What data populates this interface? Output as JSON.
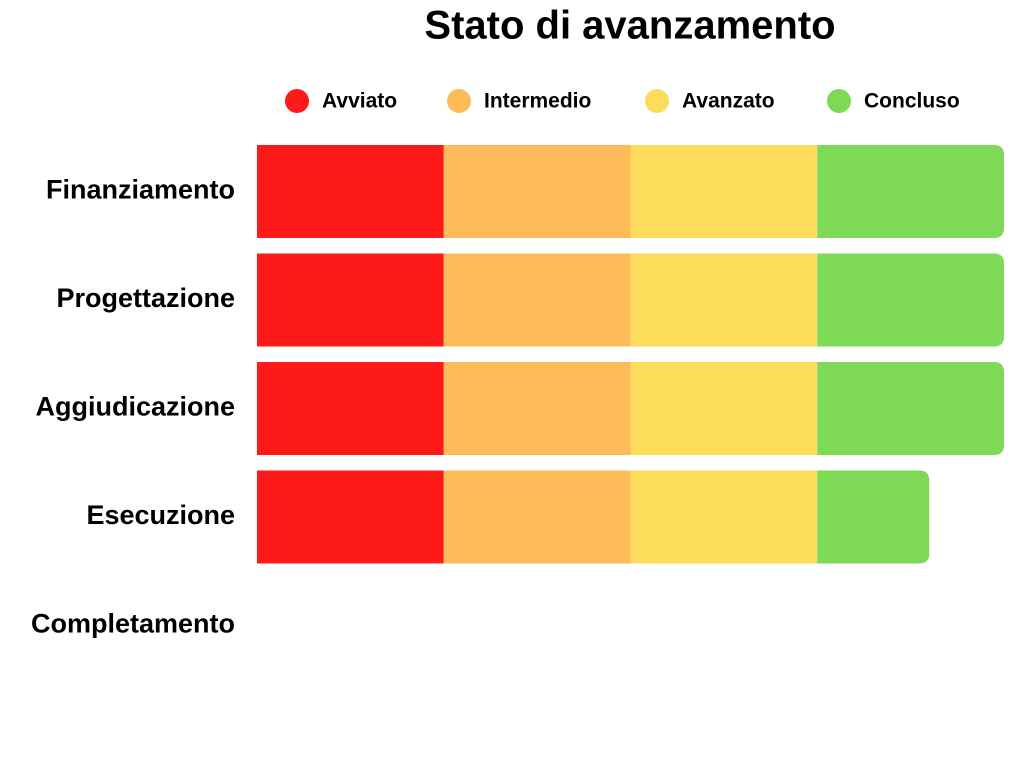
{
  "chart_data": {
    "type": "stacked-bar-horizontal",
    "title": "Stato di avanzamento",
    "categories": [
      "Finanziamento",
      "Progettazione",
      "Aggiudicazione",
      "Esecuzione",
      "Completamento"
    ],
    "series": [
      {
        "name": "Avviato",
        "color": "#ff1a1a",
        "values": [
          25,
          25,
          25,
          25,
          0
        ]
      },
      {
        "name": "Intermedio",
        "color": "#fdbb5a",
        "values": [
          25,
          25,
          25,
          25,
          0
        ]
      },
      {
        "name": "Avanzato",
        "color": "#fedc5b",
        "values": [
          25,
          25,
          25,
          25,
          0
        ]
      },
      {
        "name": "Concluso",
        "color": "#7ed957",
        "values": [
          25,
          25,
          25,
          15,
          0
        ]
      }
    ]
  }
}
